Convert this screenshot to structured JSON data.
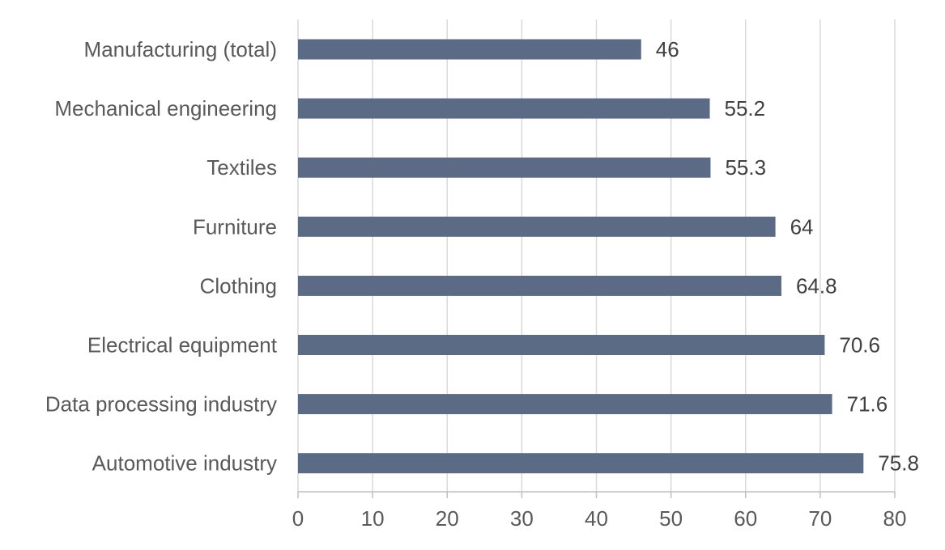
{
  "chart_data": {
    "type": "bar",
    "orientation": "horizontal",
    "categories": [
      "Manufacturing (total)",
      "Mechanical engineering",
      "Textiles",
      "Furniture",
      "Clothing",
      "Electrical equipment",
      "Data processing industry",
      "Automotive industry"
    ],
    "values": [
      46,
      55.2,
      55.3,
      64,
      64.8,
      70.6,
      71.6,
      75.8
    ],
    "data_labels": [
      "46",
      "55.2",
      "55.3",
      "64",
      "64.8",
      "70.6",
      "71.6",
      "75.8"
    ],
    "xlim": [
      0,
      80
    ],
    "xticks": [
      0,
      10,
      20,
      30,
      40,
      50,
      60,
      70,
      80
    ],
    "xtick_labels": [
      "0",
      "10",
      "20",
      "30",
      "40",
      "50",
      "60",
      "70",
      "80"
    ],
    "title": "",
    "xlabel": "",
    "ylabel": "",
    "grid": "vertical",
    "legend": "none",
    "bar_color": "#5b6a85"
  }
}
